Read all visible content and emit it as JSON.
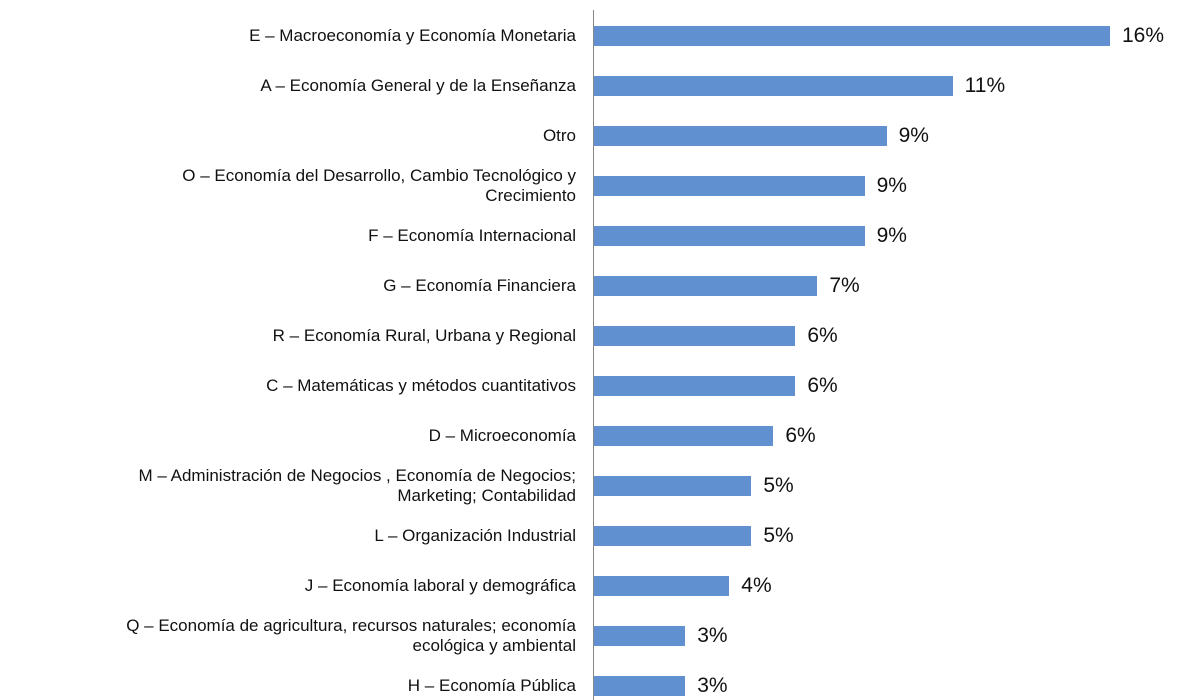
{
  "chart_data": {
    "type": "bar",
    "orientation": "horizontal",
    "color": "#6090d0",
    "categories": [
      "E – Macroeconomía y Economía Monetaria",
      "A – Economía General y de la Enseñanza",
      "Otro",
      "O – Economía del Desarrollo, Cambio Tecnológico y\nCrecimiento",
      "F – Economía Internacional",
      "G – Economía Financiera",
      "R – Economía Rural, Urbana y Regional",
      "C – Matemáticas y métodos cuantitativos",
      "D – Microeconomía",
      "M – Administración de Negocios , Economía de Negocios;\nMarketing; Contabilidad",
      "L – Organización Industrial",
      "J –  Economía laboral y demográfica",
      "Q – Economía de agricultura, recursos naturales; economía\necológica y ambiental",
      "H – Economía Pública"
    ],
    "values": [
      16.4,
      11.4,
      9.3,
      8.6,
      8.6,
      7.1,
      6.4,
      6.4,
      5.7,
      5,
      5,
      4.3,
      2.9,
      2.9
    ],
    "value_labels": [
      "16%",
      "11%",
      "9%",
      "9%",
      "9%",
      "7%",
      "6%",
      "6%",
      "6%",
      "5%",
      "5%",
      "4%",
      "3%",
      "3%"
    ]
  }
}
